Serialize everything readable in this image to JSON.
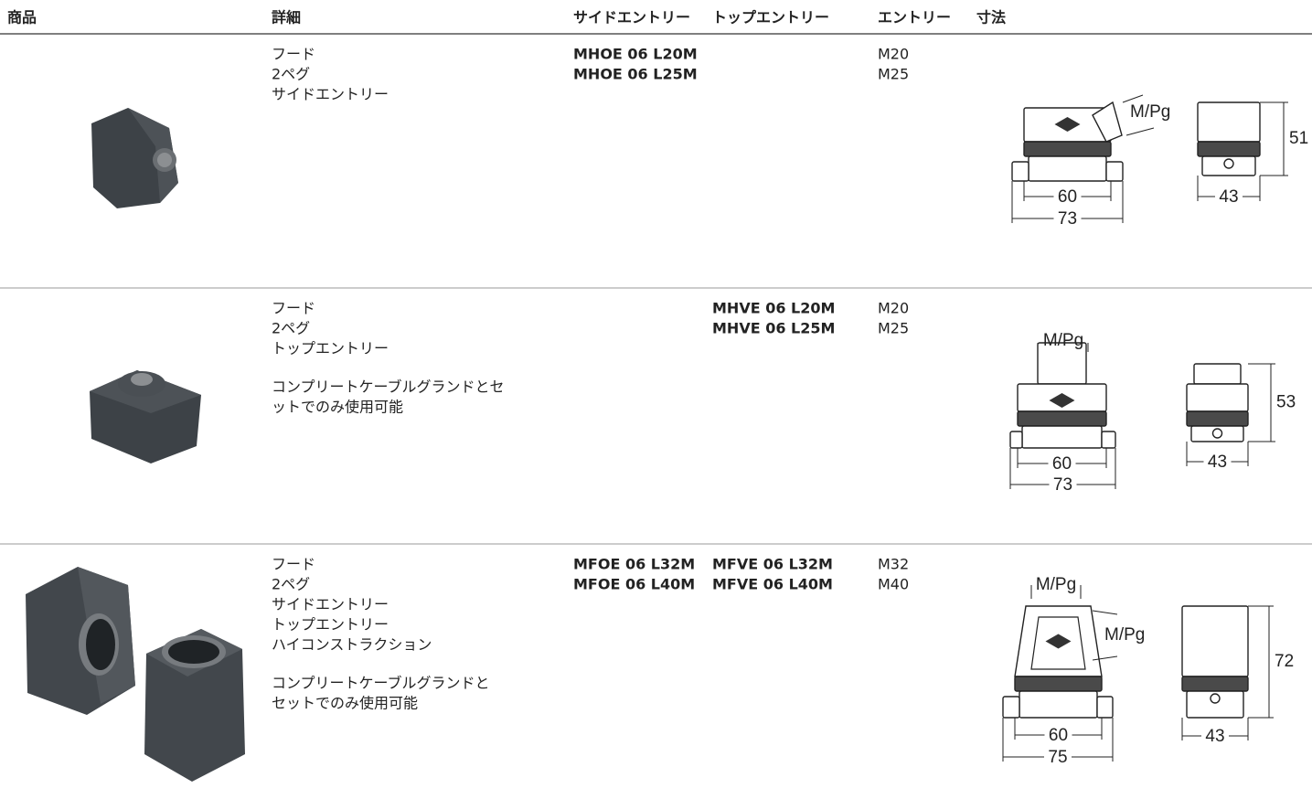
{
  "header": {
    "columns": [
      "商品",
      "詳細",
      "サイドエントリー",
      "トップエントリー",
      "エントリー",
      "寸法"
    ]
  },
  "rows": [
    {
      "details": [
        [
          "フード",
          "2ペグ",
          "サイドエントリー"
        ]
      ],
      "side_entry": [
        "MHOE 06 L20M",
        "MHOE 06 L25M"
      ],
      "top_entry": [],
      "entry": [
        "M20",
        "M25"
      ],
      "dimensions": {
        "entry_labels": [
          "M/Pg"
        ],
        "width_inner": 60,
        "width_outer": 73,
        "height": 51,
        "depth": 43
      }
    },
    {
      "details": [
        [
          "フード",
          "2ペグ",
          "トップエントリー"
        ],
        [
          "コンプリートケーブルグランドとセ",
          "ットでのみ使用可能"
        ]
      ],
      "side_entry": [],
      "top_entry": [
        "MHVE 06 L20M",
        "MHVE 06 L25M"
      ],
      "entry": [
        "M20",
        "M25"
      ],
      "dimensions": {
        "entry_labels": [
          "M/Pg"
        ],
        "width_inner": 60,
        "width_outer": 73,
        "height": 53,
        "depth": 43
      }
    },
    {
      "details": [
        [
          "フード",
          "2ペグ",
          "サイドエントリー",
          "トップエントリー",
          "ハイコンストラクション"
        ],
        [
          "コンプリートケーブルグランドと",
          "セットでのみ使用可能"
        ]
      ],
      "side_entry": [
        "MFOE 06 L32M",
        "MFOE 06 L40M"
      ],
      "top_entry": [
        "MFVE 06 L32M",
        "MFVE 06 L40M"
      ],
      "entry": [
        "M32",
        "M40"
      ],
      "dimensions": {
        "entry_labels": [
          "M/Pg",
          "M/Pg"
        ],
        "width_inner": 60,
        "width_outer": 75,
        "height": 72,
        "depth": 43
      }
    }
  ]
}
